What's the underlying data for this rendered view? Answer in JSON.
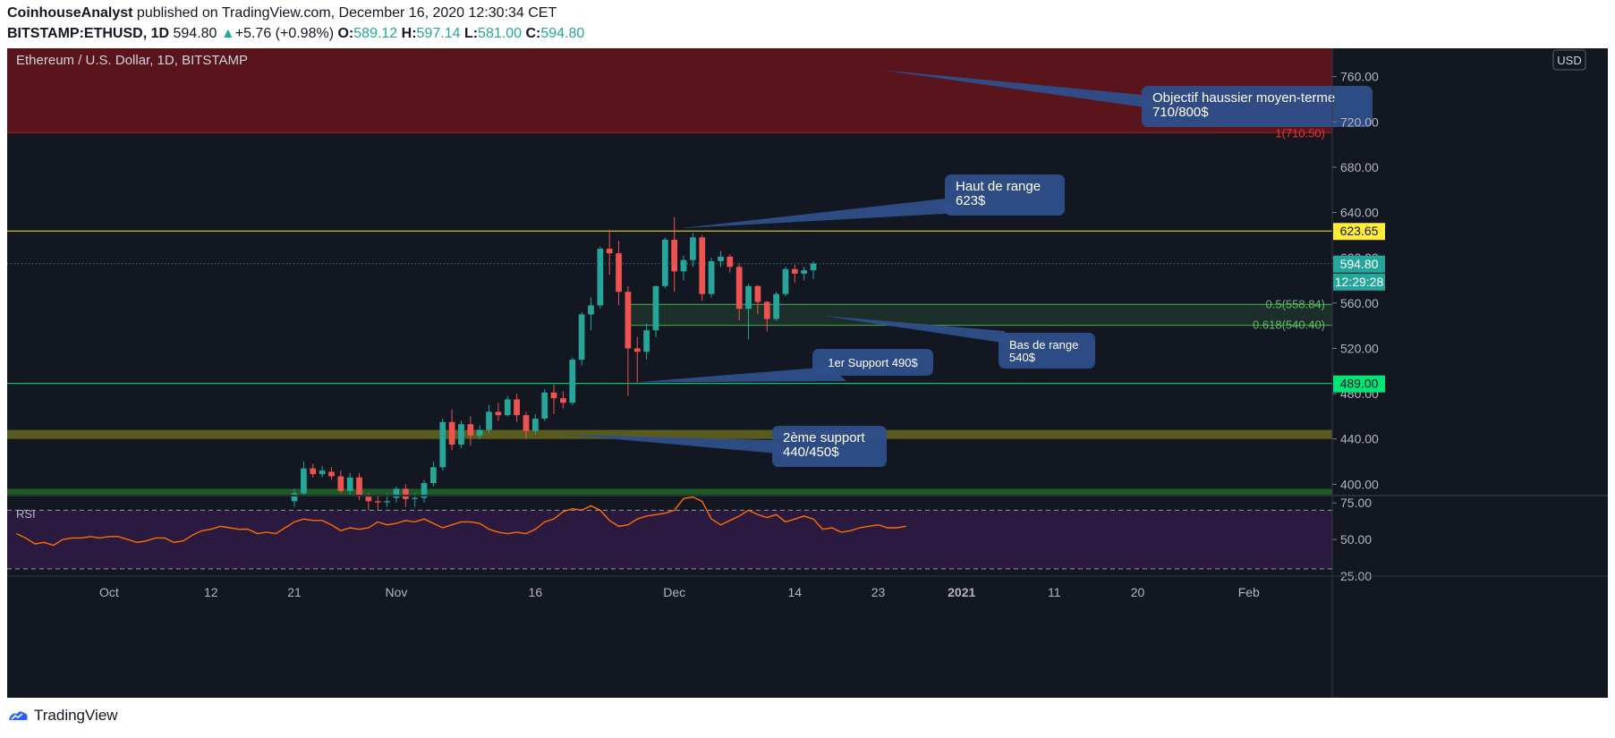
{
  "header": {
    "author": "CoinhouseAnalyst",
    "published": "published on TradingView.com, December 16, 2020 12:30:34 CET",
    "symbol": "BITSTAMP:ETHUSD",
    "timeframe": "1D",
    "last": "594.80",
    "change": "+5.76 (+0.98%)",
    "open_label": "O:",
    "open": "589.12",
    "high_label": "H:",
    "high": "597.14",
    "low_label": "L:",
    "low": "581.00",
    "close_label": "C:",
    "close": "594.80"
  },
  "legend_title": "Ethereum / U.S. Dollar, 1D, BITSTAMP",
  "currency_button": "USD",
  "footer_brand": "TradingView",
  "colors": {
    "bg": "#131722",
    "up": "#26a69a",
    "down": "#ef5350",
    "target_zone": "#5a141b",
    "resistance": "#ffeb3b",
    "support": "#00e676",
    "rsi": "#ff6d00",
    "rsi_bg": "#2a1a3f",
    "callout": "#2f4f8a"
  },
  "annotations": [
    {
      "id": "target",
      "text": [
        "Objectif haussier moyen-terme",
        "710/800$"
      ]
    },
    {
      "id": "range-high",
      "text": [
        "Haut de range",
        "623$"
      ]
    },
    {
      "id": "support-1",
      "text": [
        "1er Support 490$"
      ]
    },
    {
      "id": "range-low",
      "text": [
        "Bas de range",
        "540$"
      ]
    },
    {
      "id": "support-2",
      "text": [
        "2ème support",
        "440/450$"
      ]
    }
  ],
  "fib_labels": [
    {
      "text": "1(710.50)",
      "value": 710.5
    },
    {
      "text": "0.5(558.84)",
      "value": 558.84
    },
    {
      "text": "0.618(540.40)",
      "value": 540.4
    }
  ],
  "price_badges": [
    {
      "text": "623.65",
      "value": 623.65,
      "color": "#ffeb3b",
      "fg": "#131722"
    },
    {
      "text": "594.80",
      "value": 594.8,
      "color": "#26a69a",
      "fg": "#ffffff"
    },
    {
      "text": "489.00",
      "value": 489.0,
      "color": "#00e676",
      "fg": "#131722"
    }
  ],
  "countdown": "12:29:28",
  "rsi_label": "RSI",
  "chart_data": {
    "type": "candlestick",
    "y_axis": {
      "range": [
        390,
        785
      ],
      "ticks": [
        400,
        440,
        480,
        520,
        560,
        600,
        640,
        680,
        720,
        760
      ],
      "tick_labels": [
        "400.00",
        "440.00",
        "480.00",
        "520.00",
        "560.00",
        "600.00",
        "640.00",
        "680.00",
        "720.00",
        "760.00"
      ]
    },
    "x_axis": {
      "range": [
        "2020-09-20",
        "2021-02-10"
      ],
      "ticks": [
        {
          "date": "2020-10-01",
          "label": "Oct"
        },
        {
          "date": "2020-10-12",
          "label": "12"
        },
        {
          "date": "2020-10-21",
          "label": "21"
        },
        {
          "date": "2020-11-01",
          "label": "Nov"
        },
        {
          "date": "2020-11-16",
          "label": "16"
        },
        {
          "date": "2020-12-01",
          "label": "Dec"
        },
        {
          "date": "2020-12-14",
          "label": "14"
        },
        {
          "date": "2020-12-23",
          "label": "23"
        },
        {
          "date": "2021-01-01",
          "label": "2021"
        },
        {
          "date": "2021-01-11",
          "label": "11"
        },
        {
          "date": "2021-01-20",
          "label": "20"
        },
        {
          "date": "2021-02-01",
          "label": "Feb"
        }
      ]
    },
    "zones": [
      {
        "from": 710.5,
        "to": 800,
        "label": "target zone"
      },
      {
        "from": 540.4,
        "to": 558.84,
        "label": "range low zone"
      },
      {
        "from": 440,
        "to": 448,
        "label": "2nd support zone"
      },
      {
        "from": 390,
        "to": 396,
        "label": "support zone"
      }
    ],
    "levels": [
      623.65,
      489.0,
      594.8
    ],
    "candles": [
      {
        "d": "2020-10-21",
        "o": 385,
        "h": 396,
        "l": 380,
        "c": 392
      },
      {
        "d": "2020-10-22",
        "o": 392,
        "h": 420,
        "l": 390,
        "c": 414
      },
      {
        "d": "2020-10-23",
        "o": 414,
        "h": 418,
        "l": 406,
        "c": 409
      },
      {
        "d": "2020-10-24",
        "o": 409,
        "h": 416,
        "l": 406,
        "c": 412
      },
      {
        "d": "2020-10-25",
        "o": 411,
        "h": 415,
        "l": 404,
        "c": 407
      },
      {
        "d": "2020-10-26",
        "o": 407,
        "h": 412,
        "l": 392,
        "c": 394
      },
      {
        "d": "2020-10-27",
        "o": 394,
        "h": 410,
        "l": 390,
        "c": 406
      },
      {
        "d": "2020-10-28",
        "o": 406,
        "h": 410,
        "l": 386,
        "c": 389
      },
      {
        "d": "2020-10-29",
        "o": 389,
        "h": 392,
        "l": 375,
        "c": 385
      },
      {
        "d": "2020-10-30",
        "o": 385,
        "h": 390,
        "l": 376,
        "c": 384
      },
      {
        "d": "2020-10-31",
        "o": 384,
        "h": 392,
        "l": 380,
        "c": 385
      },
      {
        "d": "2020-11-01",
        "o": 388,
        "h": 398,
        "l": 384,
        "c": 396
      },
      {
        "d": "2020-11-02",
        "o": 396,
        "h": 400,
        "l": 380,
        "c": 387
      },
      {
        "d": "2020-11-03",
        "o": 387,
        "h": 392,
        "l": 380,
        "c": 388
      },
      {
        "d": "2020-11-04",
        "o": 388,
        "h": 404,
        "l": 384,
        "c": 401
      },
      {
        "d": "2020-11-05",
        "o": 401,
        "h": 420,
        "l": 398,
        "c": 415
      },
      {
        "d": "2020-11-06",
        "o": 415,
        "h": 458,
        "l": 412,
        "c": 455
      },
      {
        "d": "2020-11-07",
        "o": 455,
        "h": 466,
        "l": 430,
        "c": 435
      },
      {
        "d": "2020-11-08",
        "o": 435,
        "h": 456,
        "l": 432,
        "c": 453
      },
      {
        "d": "2020-11-09",
        "o": 453,
        "h": 460,
        "l": 434,
        "c": 443
      },
      {
        "d": "2020-11-10",
        "o": 443,
        "h": 452,
        "l": 440,
        "c": 448
      },
      {
        "d": "2020-11-11",
        "o": 448,
        "h": 470,
        "l": 445,
        "c": 464
      },
      {
        "d": "2020-11-12",
        "o": 464,
        "h": 472,
        "l": 456,
        "c": 461
      },
      {
        "d": "2020-11-13",
        "o": 461,
        "h": 478,
        "l": 460,
        "c": 475
      },
      {
        "d": "2020-11-14",
        "o": 475,
        "h": 480,
        "l": 455,
        "c": 461
      },
      {
        "d": "2020-11-15",
        "o": 461,
        "h": 464,
        "l": 440,
        "c": 447
      },
      {
        "d": "2020-11-16",
        "o": 447,
        "h": 462,
        "l": 444,
        "c": 458
      },
      {
        "d": "2020-11-17",
        "o": 458,
        "h": 484,
        "l": 456,
        "c": 481
      },
      {
        "d": "2020-11-18",
        "o": 481,
        "h": 488,
        "l": 462,
        "c": 476
      },
      {
        "d": "2020-11-19",
        "o": 476,
        "h": 482,
        "l": 467,
        "c": 472
      },
      {
        "d": "2020-11-20",
        "o": 472,
        "h": 512,
        "l": 470,
        "c": 510
      },
      {
        "d": "2020-11-21",
        "o": 510,
        "h": 552,
        "l": 505,
        "c": 550
      },
      {
        "d": "2020-11-22",
        "o": 550,
        "h": 565,
        "l": 536,
        "c": 558
      },
      {
        "d": "2020-11-23",
        "o": 558,
        "h": 610,
        "l": 555,
        "c": 608
      },
      {
        "d": "2020-11-24",
        "o": 608,
        "h": 625,
        "l": 585,
        "c": 604
      },
      {
        "d": "2020-11-25",
        "o": 604,
        "h": 615,
        "l": 558,
        "c": 570
      },
      {
        "d": "2020-11-26",
        "o": 570,
        "h": 575,
        "l": 478,
        "c": 520
      },
      {
        "d": "2020-11-27",
        "o": 520,
        "h": 530,
        "l": 490,
        "c": 517
      },
      {
        "d": "2020-11-28",
        "o": 517,
        "h": 542,
        "l": 510,
        "c": 536
      },
      {
        "d": "2020-11-29",
        "o": 536,
        "h": 575,
        "l": 530,
        "c": 575
      },
      {
        "d": "2020-11-30",
        "o": 575,
        "h": 618,
        "l": 573,
        "c": 616
      },
      {
        "d": "2020-12-01",
        "o": 616,
        "h": 636,
        "l": 570,
        "c": 588
      },
      {
        "d": "2020-12-02",
        "o": 588,
        "h": 602,
        "l": 580,
        "c": 598
      },
      {
        "d": "2020-12-03",
        "o": 598,
        "h": 622,
        "l": 592,
        "c": 618
      },
      {
        "d": "2020-12-04",
        "o": 618,
        "h": 620,
        "l": 562,
        "c": 568
      },
      {
        "d": "2020-12-05",
        "o": 568,
        "h": 600,
        "l": 565,
        "c": 597
      },
      {
        "d": "2020-12-06",
        "o": 597,
        "h": 606,
        "l": 592,
        "c": 601
      },
      {
        "d": "2020-12-07",
        "o": 601,
        "h": 603,
        "l": 587,
        "c": 592
      },
      {
        "d": "2020-12-08",
        "o": 592,
        "h": 595,
        "l": 545,
        "c": 555
      },
      {
        "d": "2020-12-09",
        "o": 555,
        "h": 577,
        "l": 528,
        "c": 575
      },
      {
        "d": "2020-12-10",
        "o": 575,
        "h": 576,
        "l": 550,
        "c": 561
      },
      {
        "d": "2020-12-11",
        "o": 561,
        "h": 562,
        "l": 535,
        "c": 546
      },
      {
        "d": "2020-12-12",
        "o": 546,
        "h": 570,
        "l": 544,
        "c": 568
      },
      {
        "d": "2020-12-13",
        "o": 568,
        "h": 592,
        "l": 566,
        "c": 590
      },
      {
        "d": "2020-12-14",
        "o": 590,
        "h": 594,
        "l": 578,
        "c": 586
      },
      {
        "d": "2020-12-15",
        "o": 586,
        "h": 592,
        "l": 580,
        "c": 589
      },
      {
        "d": "2020-12-16",
        "o": 589,
        "h": 597,
        "l": 581,
        "c": 595
      }
    ],
    "rsi": {
      "range": [
        25,
        80
      ],
      "ticks": [
        25,
        50,
        75
      ],
      "tick_labels": [
        "25.00",
        "50.00",
        "75.00"
      ],
      "band": [
        30,
        70
      ],
      "series_start": "2020-09-21",
      "values": [
        54,
        51,
        47,
        48,
        46,
        50,
        51,
        51,
        52,
        51,
        52,
        52,
        50,
        48,
        49,
        51,
        51,
        48,
        49,
        53,
        56,
        57,
        59,
        58,
        57,
        57,
        54,
        55,
        54,
        58,
        62,
        64,
        63,
        63,
        60,
        56,
        58,
        57,
        58,
        62,
        60,
        61,
        63,
        62,
        64,
        61,
        58,
        60,
        62,
        62,
        61,
        57,
        55,
        54,
        55,
        54,
        57,
        62,
        64,
        69,
        71,
        70,
        73,
        70,
        63,
        59,
        60,
        64,
        66,
        67,
        68,
        70,
        78,
        79,
        76,
        64,
        60,
        63,
        66,
        70,
        67,
        65,
        67,
        62,
        64,
        66,
        64,
        57,
        58,
        55,
        56,
        58,
        59,
        60,
        58,
        58,
        59
      ]
    }
  }
}
